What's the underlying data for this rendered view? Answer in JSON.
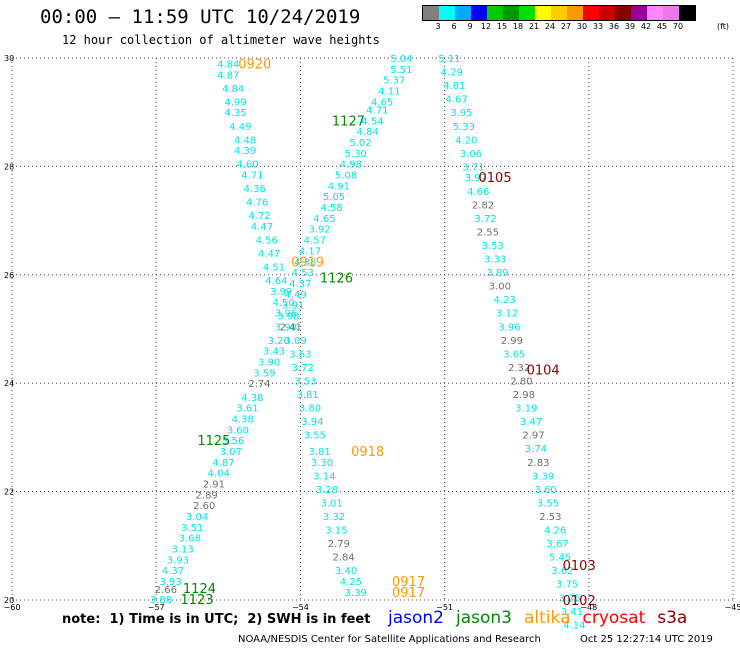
{
  "header": {
    "title": "00:00 – 11:59 UTC 10/24/2019",
    "subtitle": "12 hour collection of altimeter wave heights"
  },
  "legend": {
    "colors": [
      "#808080",
      "#00ffff",
      "#00aaff",
      "#0000ff",
      "#00cc00",
      "#009900",
      "#00e000",
      "#ffff00",
      "#ffcc00",
      "#ff9900",
      "#ff0000",
      "#cc0000",
      "#880000",
      "#990099",
      "#ff88ff",
      "#ee77ee",
      "#000000"
    ],
    "labels": [
      "3",
      "6",
      "9",
      "12",
      "15",
      "18",
      "21",
      "24",
      "27",
      "30",
      "33",
      "36",
      "39",
      "42",
      "45",
      "70"
    ],
    "unit": "(ft)"
  },
  "footer": {
    "note": "note:  1) Time is in UTC;  2) SWH is in feet",
    "satellites": [
      {
        "name": "jason2",
        "color": "#0000ff"
      },
      {
        "name": "jason3",
        "color": "#008800"
      },
      {
        "name": "altika",
        "color": "#ff9900"
      },
      {
        "name": "cryosat",
        "color": "#ff0000"
      },
      {
        "name": "s3a",
        "color": "#880000"
      }
    ],
    "credit": "NOAA/NESDIS Center for Satellite Applications and Research",
    "timestamp": "Oct 25 12:27:14 UTC 2019"
  },
  "chart_data": {
    "type": "scatter",
    "xlim": [
      -60,
      -45
    ],
    "ylim": [
      20,
      30
    ],
    "xticks": [
      -60,
      -57,
      -54,
      -51,
      -48,
      -45
    ],
    "yticks": [
      20,
      22,
      24,
      26,
      28,
      30
    ],
    "xtick_labels": [
      "−60",
      "−57",
      "−54",
      "−51",
      "−48",
      "−45"
    ],
    "grid": true,
    "value_colors": {
      "gray": "#6e6e6e",
      "cyan": "#00e6e6"
    },
    "tracks": [
      {
        "satellite": "jason3",
        "label_color": "#008800",
        "times": [
          {
            "text": "1127",
            "x": -53.0,
            "y": 28.85
          },
          {
            "text": "1126",
            "x": -53.25,
            "y": 25.95
          },
          {
            "text": "1125",
            "x": -55.8,
            "y": 22.95
          },
          {
            "text": "1124",
            "x": -56.1,
            "y": 20.22
          },
          {
            "text": "1123",
            "x": -56.15,
            "y": 20.02
          }
        ],
        "points": [
          [
            -51.9,
            30.0,
            "5.04",
            "cyan"
          ],
          [
            -51.9,
            29.8,
            "5.51",
            "cyan"
          ],
          [
            -52.05,
            29.6,
            "5.37",
            "cyan"
          ],
          [
            -52.15,
            29.4,
            "4.11",
            "cyan"
          ],
          [
            -52.3,
            29.2,
            "4.65",
            "cyan"
          ],
          [
            -52.4,
            29.05,
            "4.71",
            "cyan"
          ],
          [
            -52.5,
            28.85,
            "4.54",
            "cyan"
          ],
          [
            -52.6,
            28.65,
            "4.84",
            "cyan"
          ],
          [
            -52.75,
            28.45,
            "5.02",
            "cyan"
          ],
          [
            -52.85,
            28.25,
            "5.30",
            "cyan"
          ],
          [
            -52.95,
            28.05,
            "4.98",
            "cyan"
          ],
          [
            -53.05,
            27.85,
            "5.08",
            "cyan"
          ],
          [
            -53.2,
            27.65,
            "4.91",
            "cyan"
          ],
          [
            -53.3,
            27.45,
            "5.05",
            "cyan"
          ],
          [
            -53.35,
            27.25,
            "4.58",
            "cyan"
          ],
          [
            -53.5,
            27.05,
            "4.65",
            "cyan"
          ],
          [
            -53.6,
            26.85,
            "3.92",
            "cyan"
          ],
          [
            -53.7,
            26.65,
            "4.57",
            "cyan"
          ],
          [
            -53.8,
            26.45,
            "4.17",
            "cyan"
          ],
          [
            -53.9,
            26.25,
            "4.38",
            "cyan"
          ],
          [
            -53.95,
            26.05,
            "4.53",
            "cyan"
          ],
          [
            -54.0,
            25.85,
            "4.37",
            "cyan"
          ],
          [
            -54.1,
            25.65,
            "4.49",
            "cyan"
          ],
          [
            -54.15,
            25.45,
            "3.91",
            "cyan"
          ],
          [
            -54.25,
            25.25,
            "3.98",
            "cyan"
          ],
          [
            -54.3,
            25.05,
            "3.98",
            "cyan"
          ],
          [
            -54.45,
            24.8,
            "3.20",
            "cyan"
          ],
          [
            -54.55,
            24.6,
            "3.43",
            "cyan"
          ],
          [
            -54.65,
            24.4,
            "3.90",
            "cyan"
          ],
          [
            -54.75,
            24.2,
            "3.59",
            "cyan"
          ],
          [
            -54.85,
            24.0,
            "2.74",
            "gray"
          ],
          [
            -55.0,
            23.75,
            "4.38",
            "cyan"
          ],
          [
            -55.1,
            23.55,
            "3.61",
            "cyan"
          ],
          [
            -55.2,
            23.35,
            "4.38",
            "cyan"
          ],
          [
            -55.3,
            23.15,
            "3.60",
            "cyan"
          ],
          [
            -55.4,
            22.95,
            "3.56",
            "cyan"
          ],
          [
            -55.45,
            22.75,
            "3.07",
            "cyan"
          ],
          [
            -55.6,
            22.55,
            "4.87",
            "cyan"
          ],
          [
            -55.7,
            22.35,
            "4.04",
            "cyan"
          ],
          [
            -55.8,
            22.15,
            "2.91",
            "gray"
          ],
          [
            -55.95,
            21.95,
            "2.89",
            "gray"
          ],
          [
            -56.0,
            21.75,
            "2.60",
            "gray"
          ],
          [
            -56.15,
            21.55,
            "3.04",
            "cyan"
          ],
          [
            -56.25,
            21.35,
            "3.51",
            "cyan"
          ],
          [
            -56.3,
            21.15,
            "3.68",
            "cyan"
          ],
          [
            -56.45,
            20.95,
            "3.13",
            "cyan"
          ],
          [
            -56.55,
            20.75,
            "3.93",
            "cyan"
          ],
          [
            -56.65,
            20.55,
            "4.37",
            "cyan"
          ],
          [
            -56.7,
            20.35,
            "3.93",
            "cyan"
          ],
          [
            -56.8,
            20.2,
            "2.66",
            "gray"
          ],
          [
            -56.9,
            20.02,
            "3.88",
            "cyan"
          ]
        ]
      },
      {
        "satellite": "altika",
        "label_color": "#ff9900",
        "times": [
          {
            "text": "0920",
            "x": -54.95,
            "y": 29.9
          },
          {
            "text": "0919",
            "x": -53.85,
            "y": 26.25
          },
          {
            "text": "0918",
            "x": -52.6,
            "y": 22.75
          },
          {
            "text": "0917",
            "x": -51.75,
            "y": 20.35
          },
          {
            "text": "0917",
            "x": -51.75,
            "y": 20.15
          }
        ],
        "points": [
          [
            -55.5,
            29.9,
            "4.84",
            "cyan"
          ],
          [
            -55.5,
            29.7,
            "4.87",
            "cyan"
          ],
          [
            -55.4,
            29.45,
            "4.84",
            "cyan"
          ],
          [
            -55.35,
            29.2,
            "4.99",
            "cyan"
          ],
          [
            -55.35,
            29.0,
            "4.35",
            "cyan"
          ],
          [
            -55.25,
            28.75,
            "4.49",
            "cyan"
          ],
          [
            -55.15,
            28.5,
            "4.48",
            "cyan"
          ],
          [
            -55.15,
            28.3,
            "4.39",
            "cyan"
          ],
          [
            -55.1,
            28.05,
            "4.60",
            "cyan"
          ],
          [
            -55.0,
            27.85,
            "4.71",
            "cyan"
          ],
          [
            -54.95,
            27.6,
            "4.36",
            "cyan"
          ],
          [
            -54.9,
            27.35,
            "4.76",
            "cyan"
          ],
          [
            -54.85,
            27.1,
            "4.72",
            "cyan"
          ],
          [
            -54.8,
            26.9,
            "4.47",
            "cyan"
          ],
          [
            -54.7,
            26.65,
            "4.56",
            "cyan"
          ],
          [
            -54.65,
            26.4,
            "4.47",
            "cyan"
          ],
          [
            -54.55,
            26.15,
            "4.51",
            "cyan"
          ],
          [
            -54.5,
            25.9,
            "4.64",
            "cyan"
          ],
          [
            -54.4,
            25.7,
            "3.99",
            "cyan"
          ],
          [
            -54.35,
            25.5,
            "4.50",
            "cyan"
          ],
          [
            -54.3,
            25.3,
            "3.96",
            "cyan"
          ],
          [
            -54.2,
            25.05,
            "2.41",
            "gray"
          ],
          [
            -54.1,
            24.8,
            "3.09",
            "cyan"
          ],
          [
            -54.0,
            24.55,
            "3.63",
            "cyan"
          ],
          [
            -53.95,
            24.3,
            "3.72",
            "cyan"
          ],
          [
            -53.9,
            24.05,
            "3.53",
            "cyan"
          ],
          [
            -53.85,
            23.8,
            "3.81",
            "cyan"
          ],
          [
            -53.8,
            23.55,
            "3.80",
            "cyan"
          ],
          [
            -53.75,
            23.3,
            "3.94",
            "cyan"
          ],
          [
            -53.7,
            23.05,
            "3.55",
            "cyan"
          ],
          [
            -53.6,
            22.75,
            "3.81",
            "cyan"
          ],
          [
            -53.55,
            22.55,
            "3.30",
            "cyan"
          ],
          [
            -53.5,
            22.3,
            "3.14",
            "cyan"
          ],
          [
            -53.45,
            22.05,
            "3.28",
            "cyan"
          ],
          [
            -53.35,
            21.8,
            "3.01",
            "cyan"
          ],
          [
            -53.3,
            21.55,
            "3.32",
            "cyan"
          ],
          [
            -53.25,
            21.3,
            "3.15",
            "cyan"
          ],
          [
            -53.2,
            21.05,
            "2.79",
            "gray"
          ],
          [
            -53.1,
            20.8,
            "2.84",
            "gray"
          ],
          [
            -53.05,
            20.55,
            "3.40",
            "cyan"
          ],
          [
            -52.95,
            20.35,
            "4.25",
            "cyan"
          ],
          [
            -52.85,
            20.15,
            "3.39",
            "cyan"
          ]
        ]
      },
      {
        "satellite": "s3a",
        "label_color": "#880000",
        "times": [
          {
            "text": "0105",
            "x": -49.95,
            "y": 27.8
          },
          {
            "text": "0104",
            "x": -48.95,
            "y": 24.25
          },
          {
            "text": "0103",
            "x": -48.2,
            "y": 20.65
          },
          {
            "text": "0102",
            "x": -48.2,
            "y": 20.0
          }
        ],
        "points": [
          [
            -50.9,
            30.0,
            "5.11",
            "cyan"
          ],
          [
            -50.85,
            29.75,
            "4.29",
            "cyan"
          ],
          [
            -50.8,
            29.5,
            "4.81",
            "cyan"
          ],
          [
            -50.75,
            29.25,
            "4.67",
            "cyan"
          ],
          [
            -50.65,
            29.0,
            "3.95",
            "cyan"
          ],
          [
            -50.6,
            28.75,
            "5.33",
            "cyan"
          ],
          [
            -50.55,
            28.5,
            "4.20",
            "cyan"
          ],
          [
            -50.45,
            28.25,
            "3.06",
            "cyan"
          ],
          [
            -50.4,
            28.0,
            "3.71",
            "cyan"
          ],
          [
            -50.35,
            27.8,
            "3.97",
            "cyan"
          ],
          [
            -50.3,
            27.55,
            "4.66",
            "cyan"
          ],
          [
            -50.2,
            27.3,
            "2.82",
            "gray"
          ],
          [
            -50.15,
            27.05,
            "3.72",
            "cyan"
          ],
          [
            -50.1,
            26.8,
            "2.55",
            "gray"
          ],
          [
            -50.0,
            26.55,
            "3.53",
            "cyan"
          ],
          [
            -49.95,
            26.3,
            "3.33",
            "cyan"
          ],
          [
            -49.9,
            26.05,
            "3.89",
            "cyan"
          ],
          [
            -49.85,
            25.8,
            "3.00",
            "gray"
          ],
          [
            -49.75,
            25.55,
            "4.23",
            "cyan"
          ],
          [
            -49.7,
            25.3,
            "3.12",
            "cyan"
          ],
          [
            -49.65,
            25.05,
            "3.96",
            "cyan"
          ],
          [
            -49.6,
            24.8,
            "2.99",
            "gray"
          ],
          [
            -49.55,
            24.55,
            "3.65",
            "cyan"
          ],
          [
            -49.45,
            24.3,
            "2.32",
            "gray"
          ],
          [
            -49.4,
            24.05,
            "2.80",
            "gray"
          ],
          [
            -49.35,
            23.8,
            "2.98",
            "gray"
          ],
          [
            -49.3,
            23.55,
            "3.19",
            "cyan"
          ],
          [
            -49.2,
            23.3,
            "3.47",
            "cyan"
          ],
          [
            -49.15,
            23.05,
            "2.97",
            "gray"
          ],
          [
            -49.1,
            22.8,
            "3.74",
            "cyan"
          ],
          [
            -49.05,
            22.55,
            "2.83",
            "gray"
          ],
          [
            -48.95,
            22.3,
            "3.39",
            "cyan"
          ],
          [
            -48.9,
            22.05,
            "3.60",
            "cyan"
          ],
          [
            -48.85,
            21.8,
            "3.55",
            "cyan"
          ],
          [
            -48.8,
            21.55,
            "2.53",
            "gray"
          ],
          [
            -48.7,
            21.3,
            "4.26",
            "cyan"
          ],
          [
            -48.65,
            21.05,
            "3.67",
            "cyan"
          ],
          [
            -48.6,
            20.8,
            "5.45",
            "cyan"
          ],
          [
            -48.55,
            20.55,
            "3.62",
            "cyan"
          ],
          [
            -48.45,
            20.3,
            "3.75",
            "cyan"
          ],
          [
            -48.4,
            20.05,
            "3.75",
            "cyan"
          ],
          [
            -48.35,
            19.8,
            "3.41",
            "cyan"
          ],
          [
            -48.3,
            19.55,
            "4.14",
            "cyan"
          ]
        ]
      }
    ]
  }
}
